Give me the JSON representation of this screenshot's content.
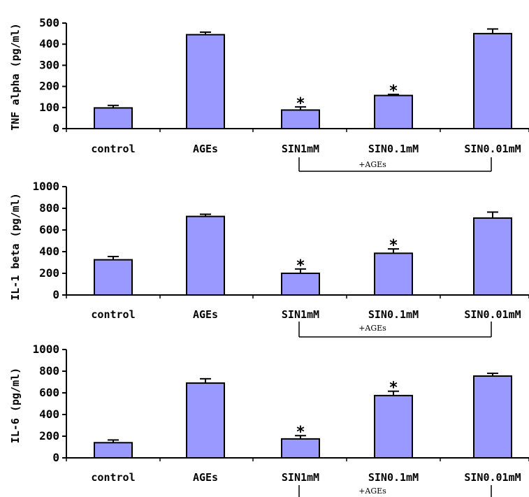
{
  "chart_data": [
    {
      "type": "bar",
      "ylabel": "TNF alpha (pg/ml)",
      "ylim": [
        0,
        500
      ],
      "yticks": [
        0,
        100,
        200,
        300,
        400,
        500
      ],
      "categories": [
        "control",
        "AGEs",
        "SIN1mM",
        "SIN0.1mM",
        "SIN0.01mM"
      ],
      "values": [
        98,
        445,
        88,
        157,
        450
      ],
      "errors": [
        12,
        12,
        15,
        5,
        22
      ],
      "significant": [
        false,
        false,
        true,
        true,
        false
      ],
      "significance_marker": "*",
      "group_annotation": "+AGEs",
      "bar_color": "#9999ff"
    },
    {
      "type": "bar",
      "ylabel": "IL-1 beta (pg/ml)",
      "ylim": [
        0,
        1000
      ],
      "yticks": [
        0,
        200,
        400,
        600,
        800,
        1000
      ],
      "categories": [
        "control",
        "AGEs",
        "SIN1mM",
        "SIN0.1mM",
        "SIN0.01mM"
      ],
      "values": [
        325,
        725,
        200,
        385,
        710
      ],
      "errors": [
        30,
        20,
        40,
        40,
        55
      ],
      "significant": [
        false,
        false,
        true,
        true,
        false
      ],
      "significance_marker": "*",
      "group_annotation": "+AGEs",
      "bar_color": "#9999ff"
    },
    {
      "type": "bar",
      "ylabel": "IL-6 (pg/ml)",
      "ylim": [
        0,
        1000
      ],
      "yticks": [
        0,
        200,
        400,
        600,
        800,
        1000
      ],
      "categories": [
        "control",
        "AGEs",
        "SIN1mM",
        "SIN0.1mM",
        "SIN0.01mM"
      ],
      "values": [
        140,
        690,
        175,
        575,
        755
      ],
      "errors": [
        25,
        40,
        30,
        40,
        25
      ],
      "significant": [
        false,
        false,
        true,
        true,
        false
      ],
      "significance_marker": "*",
      "group_annotation": "+AGEs",
      "bar_color": "#9999ff"
    }
  ]
}
